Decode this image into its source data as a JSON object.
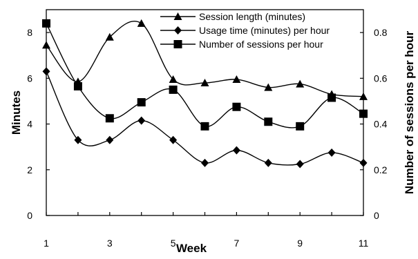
{
  "chart_data": {
    "type": "line",
    "x": [
      1,
      2,
      3,
      4,
      5,
      6,
      7,
      8,
      9,
      10,
      11
    ],
    "xlabel": "Week",
    "ylabel": "Minutes",
    "y2label": "Number of sessions per hour",
    "xlim": [
      1,
      11
    ],
    "ylim": [
      0,
      9
    ],
    "y2lim": [
      0,
      0.9
    ],
    "xticks": [
      "1",
      "3",
      "5",
      "7",
      "9",
      "11"
    ],
    "yticks": [
      "0",
      "2",
      "4",
      "6",
      "8"
    ],
    "y2ticks": [
      "0",
      "0.2",
      "0.4",
      "0.6",
      "0.8"
    ],
    "grid": false,
    "legend_position": "top-right",
    "series": [
      {
        "name": "Session length (minutes)",
        "axis": "left",
        "marker": "triangle",
        "values": [
          7.45,
          5.85,
          7.8,
          8.4,
          5.95,
          5.8,
          5.95,
          5.6,
          5.75,
          5.3,
          5.2
        ]
      },
      {
        "name": "Usage time (minutes) per hour",
        "axis": "left",
        "marker": "diamond",
        "values": [
          6.3,
          3.3,
          3.3,
          4.15,
          3.3,
          2.3,
          2.85,
          2.3,
          2.25,
          2.75,
          2.3
        ]
      },
      {
        "name": "Number of sessions per hour",
        "axis": "right",
        "marker": "square",
        "values": [
          0.84,
          0.565,
          0.425,
          0.495,
          0.55,
          0.39,
          0.475,
          0.41,
          0.39,
          0.515,
          0.445
        ]
      }
    ]
  }
}
